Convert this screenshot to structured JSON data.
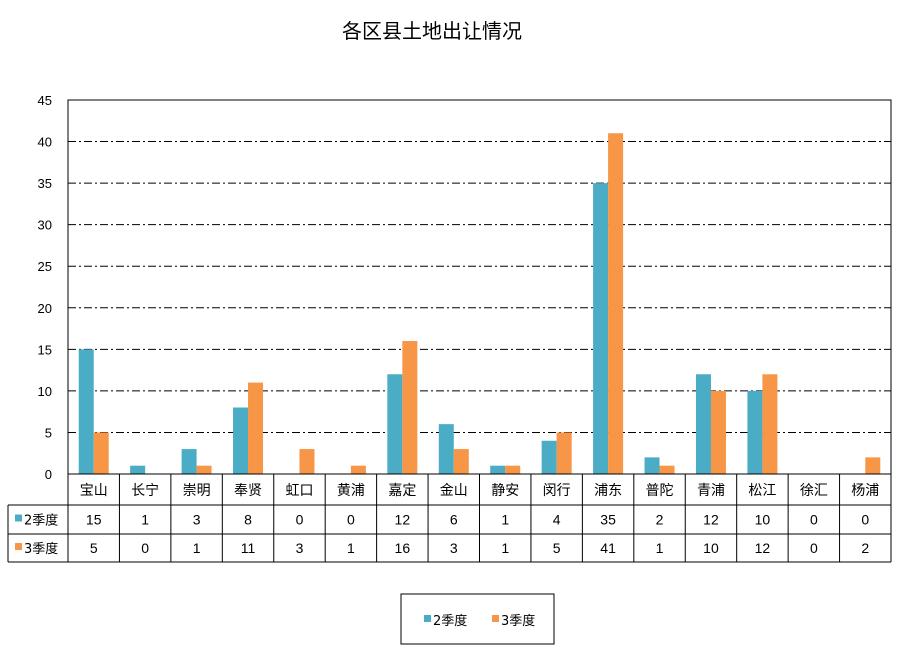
{
  "chart_data": {
    "type": "bar",
    "title": "各区县土地出让情况",
    "ylim": [
      0,
      45
    ],
    "yticks": [
      "0",
      "5",
      "10",
      "15",
      "20",
      "25",
      "30",
      "35",
      "40",
      "45"
    ],
    "grid": true,
    "legend_position": "bottom",
    "categories": [
      "宝山",
      "长宁",
      "崇明",
      "奉贤",
      "虹口",
      "黄浦",
      "嘉定",
      "金山",
      "静安",
      "闵行",
      "浦东",
      "普陀",
      "青浦",
      "松江",
      "徐汇",
      "杨浦"
    ],
    "series": [
      {
        "name": "2季度",
        "color": "#4BACC6",
        "values": [
          15,
          1,
          3,
          8,
          0,
          0,
          12,
          6,
          1,
          4,
          35,
          2,
          12,
          10,
          0,
          0
        ]
      },
      {
        "name": "3季度",
        "color": "#F79646",
        "values": [
          5,
          0,
          1,
          11,
          3,
          1,
          16,
          3,
          1,
          5,
          41,
          1,
          10,
          12,
          0,
          2
        ]
      }
    ],
    "data_table": true
  }
}
